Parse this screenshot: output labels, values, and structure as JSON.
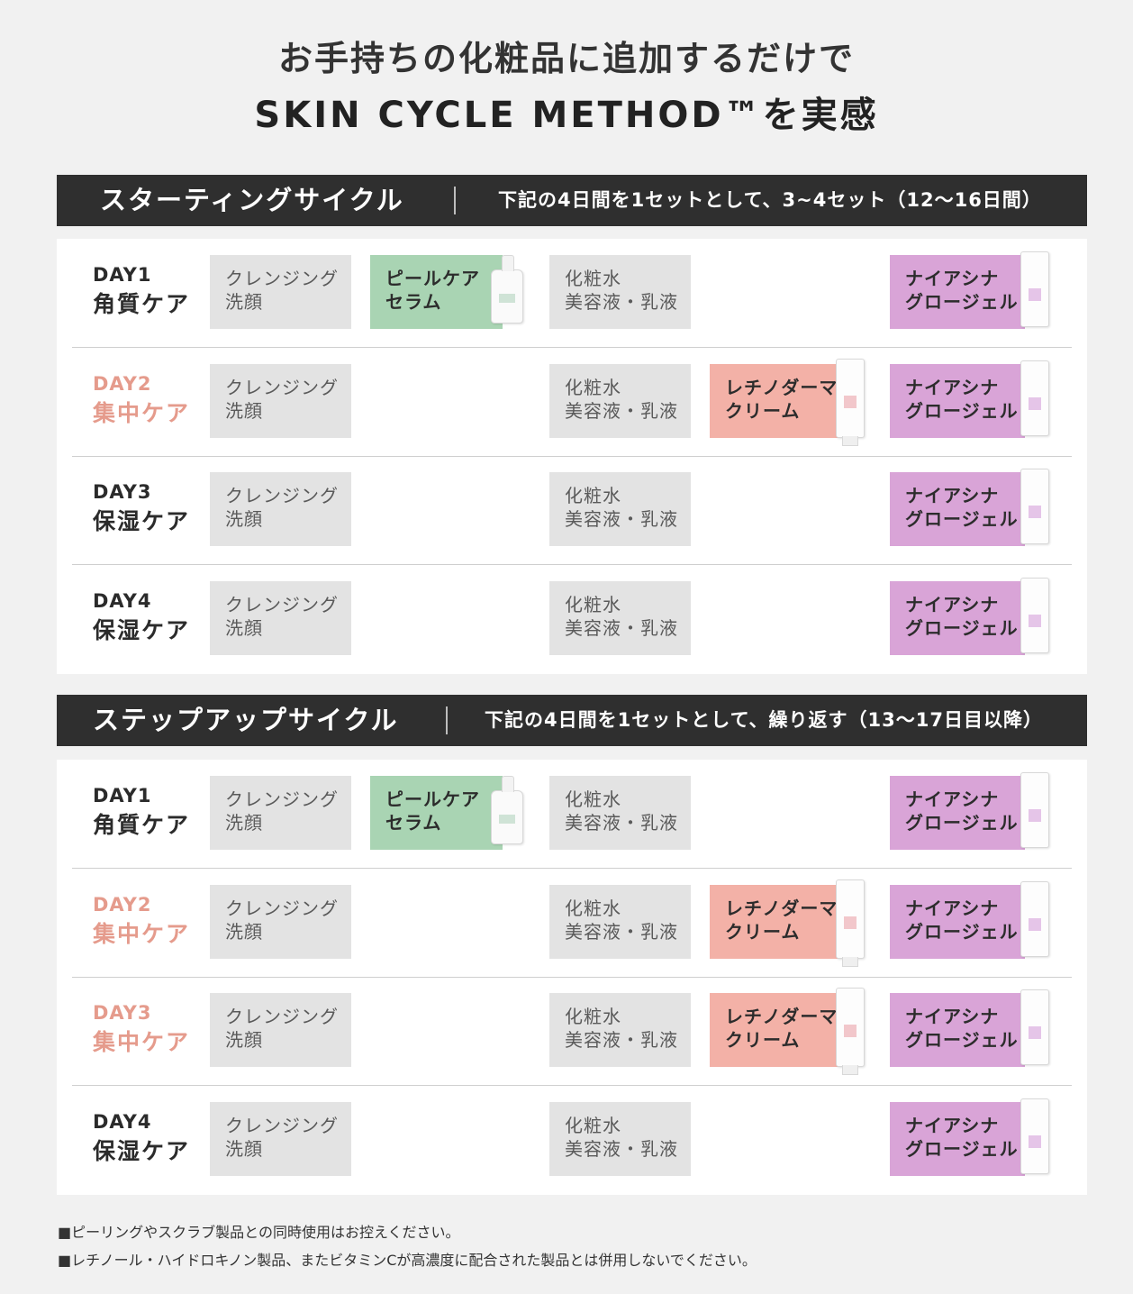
{
  "headline": {
    "line1": "お手持ちの化粧品に追加するだけで",
    "line2": "SKIN CYCLE METHOD™を実感"
  },
  "labels": {
    "cleansing": [
      "クレンジング",
      "洗顔"
    ],
    "lotion": [
      "化粧水",
      "美容液・乳液"
    ],
    "peel": [
      "ピールケア",
      "セラム"
    ],
    "retino": [
      "レチノダーマ",
      "クリーム"
    ],
    "niacina": [
      "ナイアシナ",
      "グロージェル"
    ]
  },
  "sections": [
    {
      "name": "スターティングサイクル",
      "description": "下記の4日間を1セットとして、3~4セット（12〜16日間）",
      "days": [
        {
          "day": "DAY1",
          "care": "角質ケア",
          "focus": false,
          "peel": true,
          "retino": false
        },
        {
          "day": "DAY2",
          "care": "集中ケア",
          "focus": true,
          "peel": false,
          "retino": true
        },
        {
          "day": "DAY3",
          "care": "保湿ケア",
          "focus": false,
          "peel": false,
          "retino": false
        },
        {
          "day": "DAY4",
          "care": "保湿ケア",
          "focus": false,
          "peel": false,
          "retino": false
        }
      ]
    },
    {
      "name": "ステップアップサイクル",
      "description": "下記の4日間を1セットとして、繰り返す（13〜17日目以降）",
      "days": [
        {
          "day": "DAY1",
          "care": "角質ケア",
          "focus": false,
          "peel": true,
          "retino": false
        },
        {
          "day": "DAY2",
          "care": "集中ケア",
          "focus": true,
          "peel": false,
          "retino": true
        },
        {
          "day": "DAY3",
          "care": "集中ケア",
          "focus": true,
          "peel": false,
          "retino": true
        },
        {
          "day": "DAY4",
          "care": "保湿ケア",
          "focus": false,
          "peel": false,
          "retino": false
        }
      ]
    }
  ],
  "notes": [
    "■ピーリングやスクラブ製品との同時使用はお控えください。",
    "■レチノール・ハイドロキノン製品、またビタミンCが高濃度に配合された製品とは併用しないでください。"
  ]
}
